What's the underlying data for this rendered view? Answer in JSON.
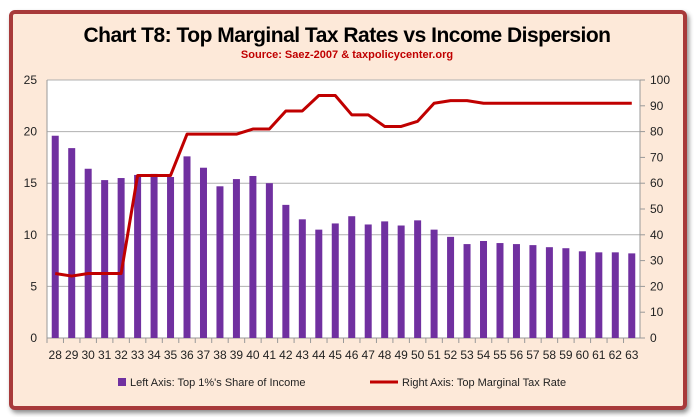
{
  "chart_data": {
    "type": "bar+line",
    "title": "Chart T8: Top Marginal Tax Rates vs Income Dispersion",
    "subtitle": "Source: Saez-2007 & taxpolicycenter.org",
    "categories": [
      "28",
      "29",
      "30",
      "31",
      "32",
      "33",
      "34",
      "35",
      "36",
      "37",
      "38",
      "39",
      "40",
      "41",
      "42",
      "43",
      "44",
      "45",
      "46",
      "47",
      "48",
      "49",
      "50",
      "51",
      "52",
      "53",
      "54",
      "55",
      "56",
      "57",
      "58",
      "59",
      "60",
      "61",
      "62",
      "63"
    ],
    "series": [
      {
        "name": "Left Axis: Top 1%'s Share of Income",
        "type": "bar",
        "axis": "left",
        "color": "#7030a0",
        "values": [
          19.6,
          18.4,
          16.4,
          15.3,
          15.5,
          15.8,
          15.9,
          15.6,
          17.6,
          16.5,
          14.7,
          15.4,
          15.7,
          15.0,
          12.9,
          11.5,
          10.5,
          11.1,
          11.8,
          11.0,
          11.3,
          10.9,
          11.4,
          10.5,
          9.8,
          9.1,
          9.4,
          9.2,
          9.1,
          9.0,
          8.8,
          8.7,
          8.4,
          8.3,
          8.3,
          8.2
        ]
      },
      {
        "name": "Right Axis: Top Marginal Tax Rate",
        "type": "line",
        "axis": "right",
        "color": "#c00000",
        "values": [
          25,
          24,
          25,
          25,
          25,
          63,
          63,
          63,
          79,
          79,
          79,
          79,
          81,
          81,
          88,
          88,
          94,
          94,
          86.5,
          86.5,
          82,
          82,
          84,
          91,
          92,
          92,
          91,
          91,
          91,
          91,
          91,
          91,
          91,
          91,
          91,
          91
        ]
      }
    ],
    "left_axis": {
      "ylim": [
        0,
        25
      ],
      "ticks": [
        "0",
        "5",
        "10",
        "15",
        "20",
        "25"
      ]
    },
    "right_axis": {
      "ylim": [
        0,
        100
      ],
      "ticks": [
        "0",
        "10",
        "20",
        "30",
        "40",
        "50",
        "60",
        "70",
        "80",
        "90",
        "100"
      ]
    },
    "grid": true,
    "legend": "bottom"
  }
}
